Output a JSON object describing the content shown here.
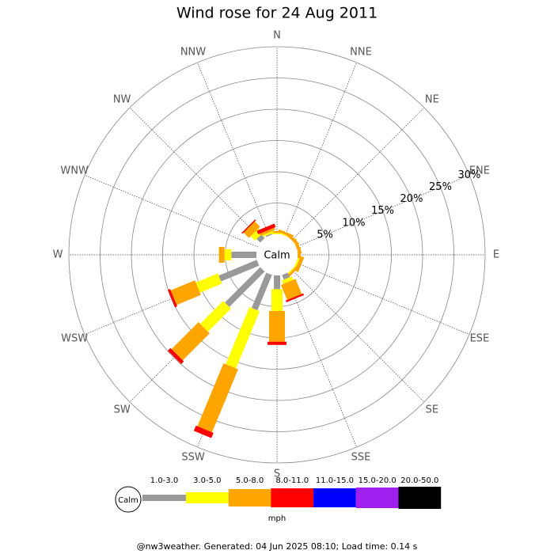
{
  "chart_data": {
    "type": "windrose",
    "title": "Wind rose for 24 Aug 2011",
    "categories": [
      "N",
      "NNE",
      "NE",
      "ENE",
      "E",
      "ESE",
      "SE",
      "SSE",
      "S",
      "SSW",
      "SW",
      "WSW",
      "W",
      "WNW",
      "NW",
      "NNW"
    ],
    "series": [
      {
        "name": "1.0-3.0",
        "color": "#999999",
        "values": [
          0,
          0,
          0,
          0,
          0,
          0,
          0,
          0.8,
          2.2,
          6.1,
          8.0,
          6.6,
          4.0,
          0,
          0.8,
          0.2
        ]
      },
      {
        "name": "3.0-5.0",
        "color": "#ffff00",
        "values": [
          0.2,
          0.2,
          0,
          0,
          0,
          0.3,
          0.2,
          0.6,
          3.5,
          9.9,
          5.2,
          3.8,
          1.1,
          0,
          1.0,
          0.3
        ]
      },
      {
        "name": "5.0-8.0",
        "color": "#ffa500",
        "values": [
          0.3,
          0.4,
          0.5,
          0.5,
          0.5,
          0.6,
          0.4,
          2.6,
          4.9,
          10.9,
          6.1,
          4.2,
          0.9,
          0,
          1.2,
          0.4
        ]
      },
      {
        "name": "8.0-11.0",
        "color": "#ff0000",
        "values": [
          0,
          0,
          0,
          0,
          0,
          0,
          0,
          0.3,
          0.5,
          0.9,
          0.6,
          0.4,
          0,
          0,
          0.2,
          0.6
        ]
      },
      {
        "name": "11.0-15.0",
        "color": "#0000ff",
        "values": [
          0,
          0,
          0,
          0,
          0,
          0,
          0,
          0,
          0,
          0,
          0,
          0,
          0,
          0,
          0,
          0
        ]
      },
      {
        "name": "15.0-20.0",
        "color": "#a020f0",
        "values": [
          0,
          0,
          0,
          0,
          0,
          0,
          0,
          0,
          0,
          0,
          0,
          0,
          0,
          0,
          0,
          0
        ]
      },
      {
        "name": "20.0-50.0",
        "color": "#000000",
        "values": [
          0,
          0,
          0,
          0,
          0,
          0,
          0,
          0,
          0,
          0,
          0,
          0,
          0,
          0,
          0,
          0
        ]
      }
    ],
    "rlim": [
      0,
      30
    ],
    "rticks": [
      {
        "value": 5,
        "label": "5%"
      },
      {
        "value": 10,
        "label": "10%"
      },
      {
        "value": 15,
        "label": "15%"
      },
      {
        "value": 20,
        "label": "20%"
      },
      {
        "value": 25,
        "label": "25%"
      },
      {
        "value": 30,
        "label": "30%"
      }
    ],
    "calm_label": "Calm",
    "legend_calm_label": "Calm",
    "unit": "mph",
    "footer": "@nw3weather. Generated: 04 Jun 2025 08:10; Load time: 0.14 s"
  }
}
